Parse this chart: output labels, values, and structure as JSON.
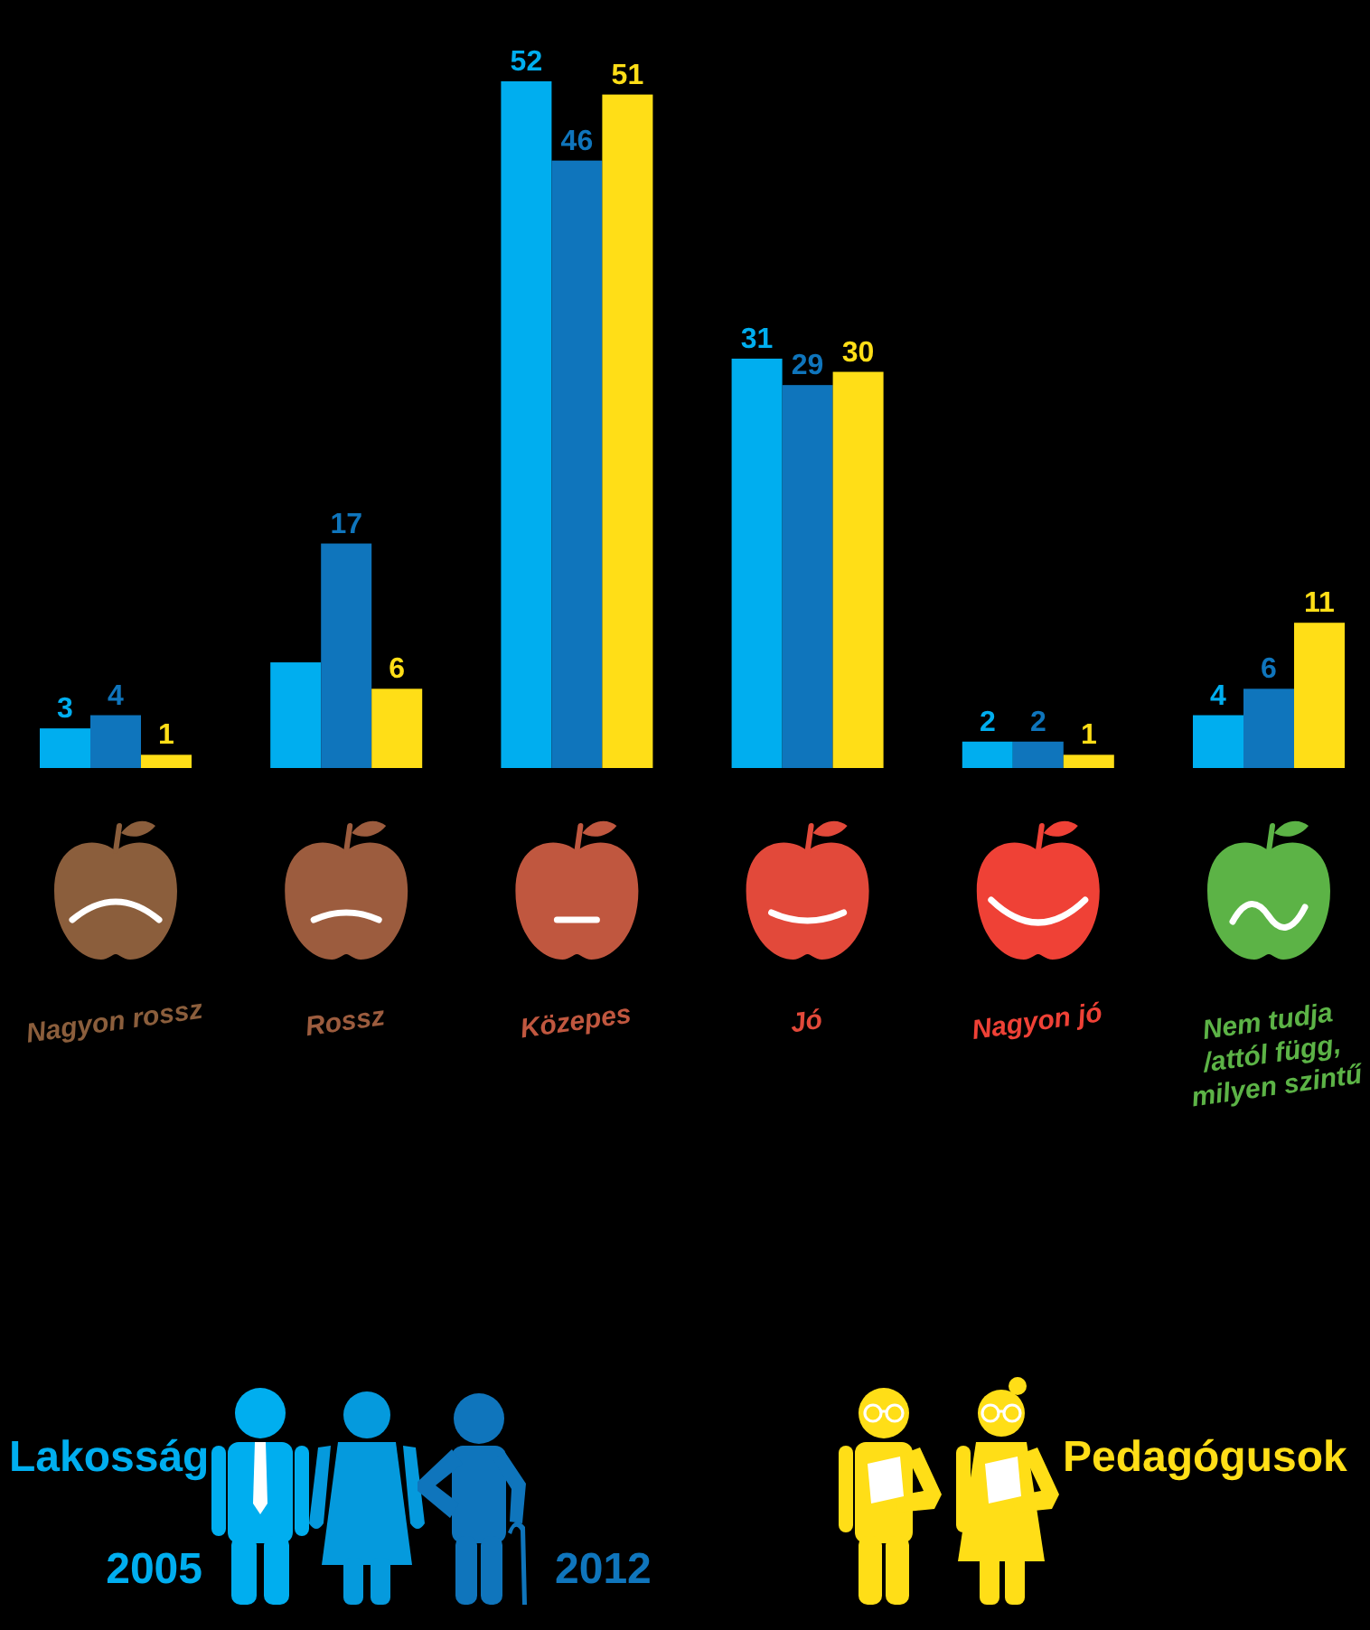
{
  "chart_data": {
    "type": "bar",
    "categories": [
      "Nagyon rossz",
      "Rossz",
      "Közepes",
      "Jó",
      "Nagyon jó",
      "Nem tudja /attól függ, milyen szintű"
    ],
    "series": [
      {
        "name": "2005",
        "color": "#00aeef",
        "values": [
          3,
          8,
          52,
          31,
          2,
          4
        ],
        "value_labels": [
          "3",
          null,
          "52",
          "31",
          "2",
          "4"
        ]
      },
      {
        "name": "2012",
        "color": "#0f75bc",
        "values": [
          4,
          17,
          46,
          29,
          2,
          6
        ],
        "value_labels": [
          "4",
          "17",
          "46",
          "29",
          "2",
          "6"
        ]
      },
      {
        "name": "Pedagógusok",
        "color": "#ffde17",
        "values": [
          1,
          6,
          51,
          30,
          1,
          11
        ],
        "value_labels": [
          "1",
          "6",
          "51",
          "30",
          "1",
          "11"
        ]
      }
    ],
    "legend_title": "Lakosság",
    "legend": "bottom"
  }
}
